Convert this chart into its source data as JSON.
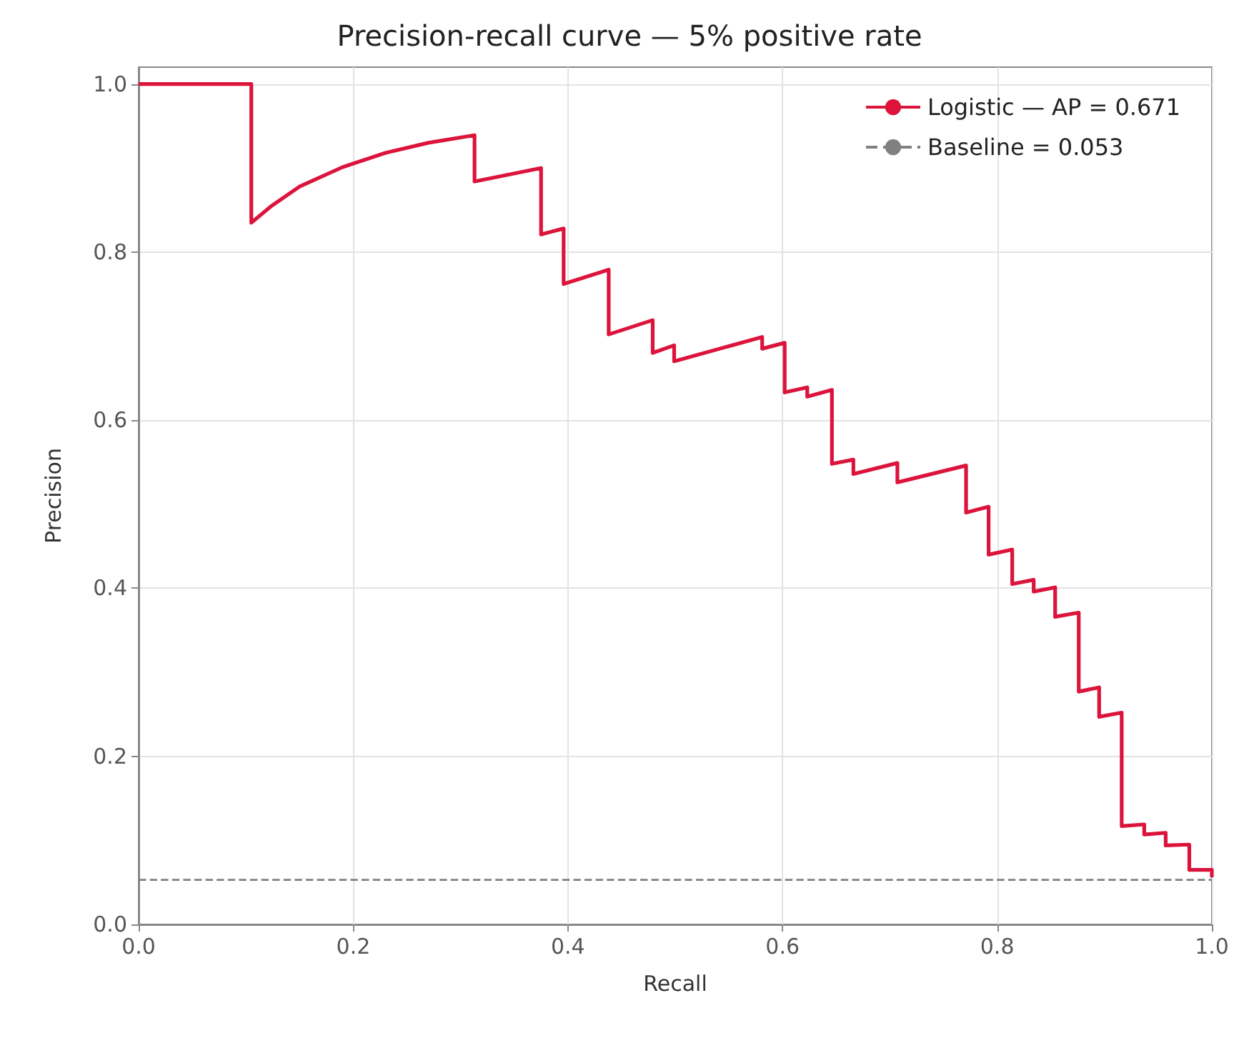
{
  "chart_data": {
    "type": "line",
    "title": "Precision-recall curve — 5% positive rate",
    "xlabel": "Recall",
    "ylabel": "Precision",
    "xlim": [
      0,
      1
    ],
    "ylim": [
      0,
      1.02
    ],
    "xticks": [
      {
        "value": 0,
        "label": "0.0"
      },
      {
        "value": 0.2,
        "label": "0.2"
      },
      {
        "value": 0.4,
        "label": "0.4"
      },
      {
        "value": 0.6,
        "label": "0.6"
      },
      {
        "value": 0.8,
        "label": "0.8"
      },
      {
        "value": 1,
        "label": "1.0"
      }
    ],
    "yticks": [
      {
        "value": 0,
        "label": "0.0"
      },
      {
        "value": 0.2,
        "label": "0.2"
      },
      {
        "value": 0.4,
        "label": "0.4"
      },
      {
        "value": 0.6,
        "label": "0.6"
      },
      {
        "value": 0.8,
        "label": "0.8"
      },
      {
        "value": 1,
        "label": "1.0"
      }
    ],
    "grid": true,
    "legend": "top right",
    "marker": "none",
    "series": [
      {
        "name": "Logistic — AP = 0.671",
        "color": "#dc143c",
        "line_style": "solid",
        "x": [
          0,
          0.105,
          0.105,
          0.124,
          0.15,
          0.19,
          0.23,
          0.27,
          0.313,
          0.313,
          0.375,
          0.375,
          0.396,
          0.396,
          0.438,
          0.438,
          0.479,
          0.479,
          0.499,
          0.499,
          0.581,
          0.581,
          0.602,
          0.602,
          0.623,
          0.623,
          0.646,
          0.646,
          0.666,
          0.666,
          0.707,
          0.707,
          0.771,
          0.771,
          0.792,
          0.792,
          0.814,
          0.814,
          0.834,
          0.834,
          0.854,
          0.854,
          0.876,
          0.876,
          0.895,
          0.895,
          0.916,
          0.916,
          0.937,
          0.937,
          0.957,
          0.957,
          0.979,
          0.979,
          1,
          1
        ],
        "values": [
          1,
          1,
          0.835,
          0.855,
          0.878,
          0.901,
          0.918,
          0.93,
          0.939,
          0.884,
          0.9,
          0.821,
          0.828,
          0.762,
          0.779,
          0.702,
          0.719,
          0.68,
          0.689,
          0.67,
          0.699,
          0.685,
          0.692,
          0.633,
          0.639,
          0.628,
          0.636,
          0.548,
          0.553,
          0.536,
          0.549,
          0.526,
          0.546,
          0.49,
          0.497,
          0.44,
          0.446,
          0.405,
          0.41,
          0.396,
          0.401,
          0.366,
          0.371,
          0.277,
          0.282,
          0.247,
          0.252,
          0.117,
          0.119,
          0.107,
          0.109,
          0.094,
          0.095,
          0.065,
          0.065,
          0.056
        ]
      },
      {
        "name": "Baseline = 0.053",
        "color": "#808080",
        "line_style": "dashed",
        "x": [
          0,
          1
        ],
        "values": [
          0.053,
          0.053
        ]
      }
    ]
  }
}
